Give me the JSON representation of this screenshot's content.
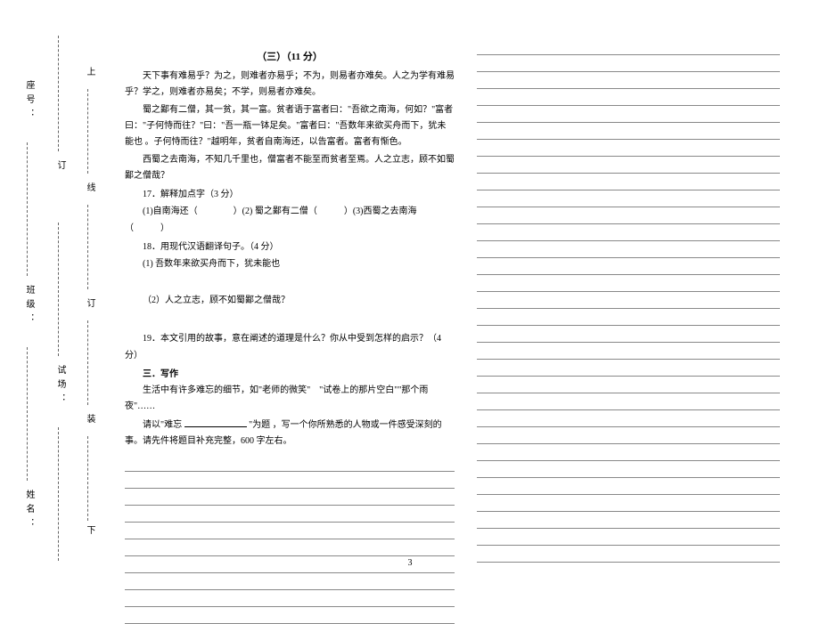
{
  "binding": {
    "labels": {
      "name": "姓名：",
      "class": "班级：",
      "exam": "试场：",
      "seat": "座号：",
      "seal_parts": [
        "下",
        "装",
        "订",
        "线",
        "上"
      ]
    }
  },
  "section3": {
    "title": "（三）（11 分）",
    "paragraphs": [
      "天下事有难易乎？为之，则难者亦易乎；不为，则易者亦难矣。人之为学有难易乎？学之，则难者亦易矣；不学，则易者亦难矣。",
      "蜀之鄙有二僧，其一贫，其一富。贫者语于富者曰：\"吾欲之南海，何如？\"富者曰：\"子何恃而往？\"曰：\"吾一瓶一钵足矣。\"富者曰：\"吾数年来欲买舟而下，犹未能也 。子何恃而往？\"越明年，贫者自南海还，以告富者。富者有惭色。",
      "西蜀之去南海，不知几千里也，僧富者不能至而贫者至焉。人之立志，顾不如蜀鄙之僧哉？"
    ],
    "q17": {
      "stem": "17．解释加点字（3 分）",
      "items": "(1)自南海还（　　　　）(2) 蜀之鄙有二僧（　　　）(3)西蜀之去南海（　　　）"
    },
    "q18": {
      "stem": "18．用现代汉语翻译句子。（4 分）",
      "item1": "(1) 吾数年来欲买舟而下，犹未能也",
      "item2": "（2）人之立志，顾不如蜀鄙之僧哉？"
    },
    "q19": "19．本文引用的故事，意在阐述的道理是什么？你从中受到怎样的启示？（4 分）"
  },
  "writing": {
    "title": "三．写作",
    "intro": "生活中有许多难忘的细节，如\"老师的微笑\"　\"试卷上的那片空白\"\"那个雨夜\"……",
    "prompt_pre": "请以\"难忘 ",
    "prompt_post": " \"为题 ，写一个你所熟悉的人物或一件感受深刻的事。请先件将题目补充完整，600 字左右。"
  },
  "page_number": "3",
  "style": {
    "bg": "#ffffff",
    "text": "#000000",
    "line_color": "#888888",
    "font_body_pt": 10,
    "font_title_pt": 11,
    "line_height": 1.8,
    "left_blank_lines": 10,
    "right_blank_lines": 31
  }
}
